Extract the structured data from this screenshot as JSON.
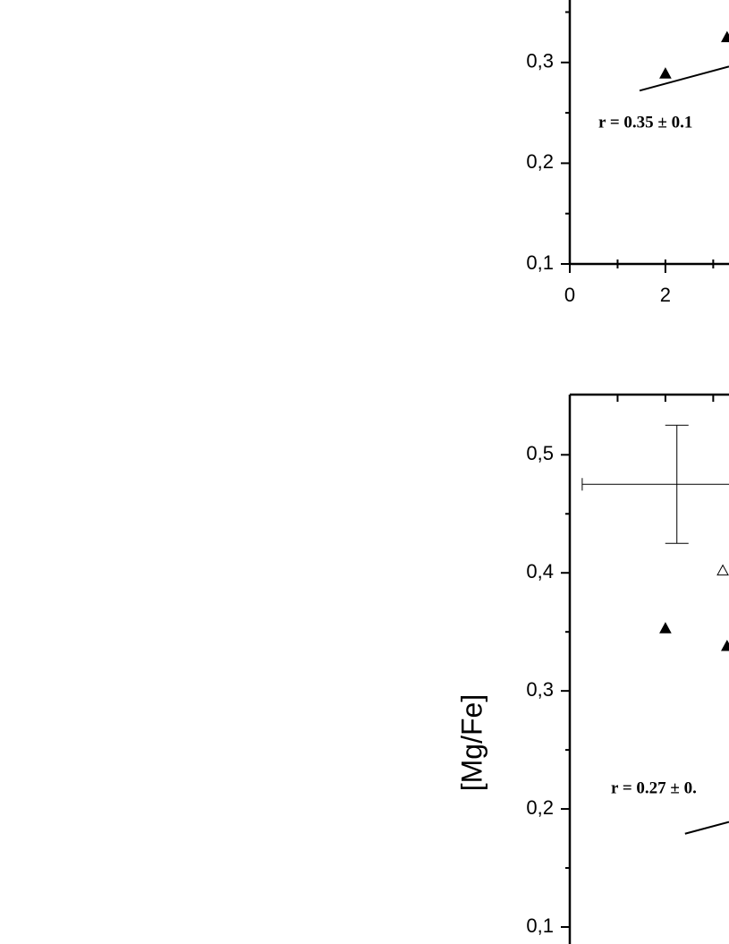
{
  "chart_data": [
    {
      "type": "scatter",
      "xlim": [
        0,
        3.33
      ],
      "ylim": [
        0.1,
        0.362
      ],
      "xticks": [
        0,
        2
      ],
      "xminor": [
        1,
        3
      ],
      "yticks": [
        {
          "value": 0.1,
          "label": "0,1"
        },
        {
          "value": 0.2,
          "label": "0,2"
        },
        {
          "value": 0.3,
          "label": "0,3"
        }
      ],
      "yminor": [
        0.15,
        0.25,
        0.35
      ],
      "series": [
        {
          "marker": "triangle",
          "filled": true,
          "color": "#000000",
          "x": [
            2,
            3.29
          ],
          "values": [
            0.289,
            0.325
          ]
        }
      ],
      "fit_line": {
        "x": [
          1.46,
          3.33
        ],
        "values": [
          0.272,
          0.296
        ]
      },
      "annotation": "r = 0.35 ± 0.1"
    },
    {
      "type": "scatter",
      "xlim": [
        0,
        3.33
      ],
      "ylim": [
        0.0856,
        0.551
      ],
      "top_ticks": [
        1,
        2,
        3
      ],
      "ylabel": "[Mg/Fe]",
      "yticks": [
        {
          "value": 0.1,
          "label": "0,1"
        },
        {
          "value": 0.2,
          "label": "0,2"
        },
        {
          "value": 0.3,
          "label": "0,3"
        },
        {
          "value": 0.4,
          "label": "0,4"
        },
        {
          "value": 0.5,
          "label": "0,5"
        }
      ],
      "yminor": [
        0.15,
        0.25,
        0.35,
        0.45
      ],
      "series": [
        {
          "marker": "triangle",
          "filled": true,
          "color": "#000000",
          "x": [
            2,
            3.29
          ],
          "values": [
            0.353,
            0.338
          ]
        },
        {
          "marker": "triangle",
          "filled": false,
          "color": "#000000",
          "x": [
            3.2
          ],
          "values": [
            0.402
          ]
        },
        {
          "marker": "errorbar",
          "color": "#000000",
          "x": [
            2.24
          ],
          "values": [
            0.475
          ],
          "x_error": [
            1.98
          ],
          "y_error": [
            0.05
          ]
        }
      ],
      "fit_line": {
        "x": [
          2.41,
          3.33
        ],
        "values": [
          0.179,
          0.189
        ]
      },
      "annotation": "r = 0.27 ± 0."
    }
  ]
}
